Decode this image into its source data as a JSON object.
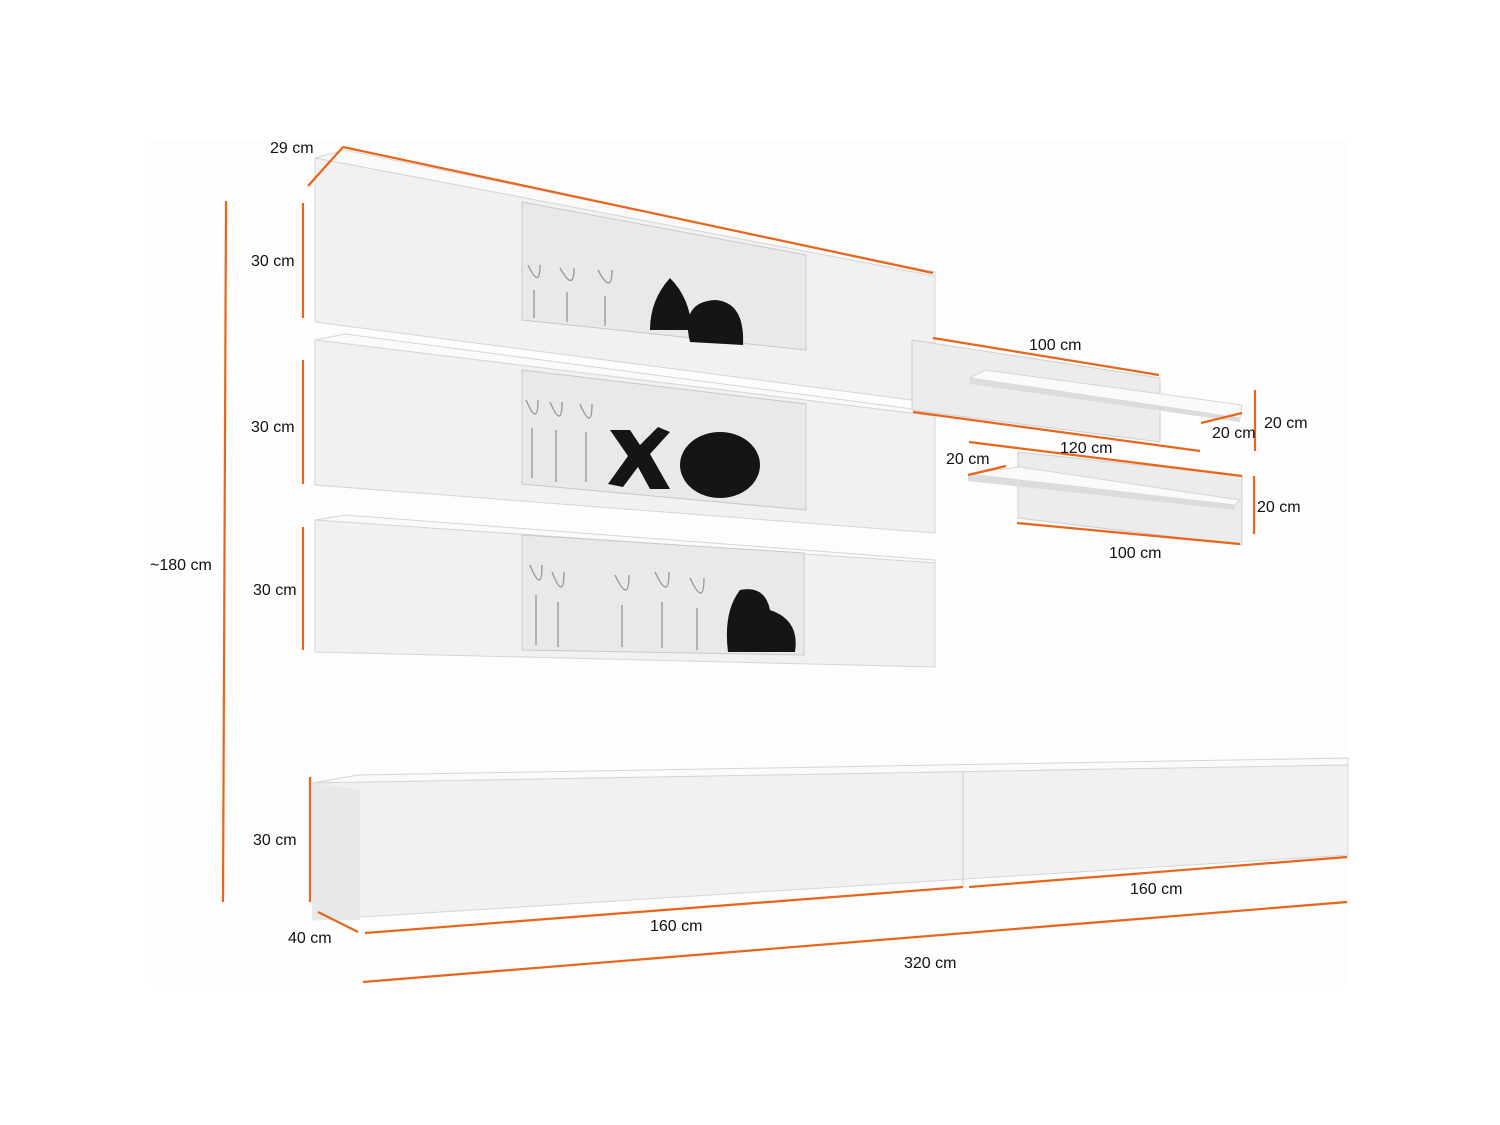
{
  "colors": {
    "dimension_line": "#e8651a",
    "furniture": "#f1f1f1",
    "background": "#ffffff"
  },
  "dimensions": {
    "wall_cabinet_depth": "29 cm",
    "wall_cabinet_1_height": "30 cm",
    "wall_cabinet_2_height": "30 cm",
    "wall_cabinet_3_height": "30 cm",
    "total_height": "~180 cm",
    "shelf_1_top_width": "100 cm",
    "shelf_1_back_width": "120 cm",
    "shelf_1_depth": "20 cm",
    "shelf_1_height": "20 cm",
    "shelf_2_depth": "20 cm",
    "shelf_2_height": "20 cm",
    "shelf_2_width": "100 cm",
    "lowboard_height": "30 cm",
    "lowboard_depth": "40 cm",
    "lowboard_left_width": "160 cm",
    "lowboard_right_width": "160 cm",
    "total_width": "320 cm"
  }
}
